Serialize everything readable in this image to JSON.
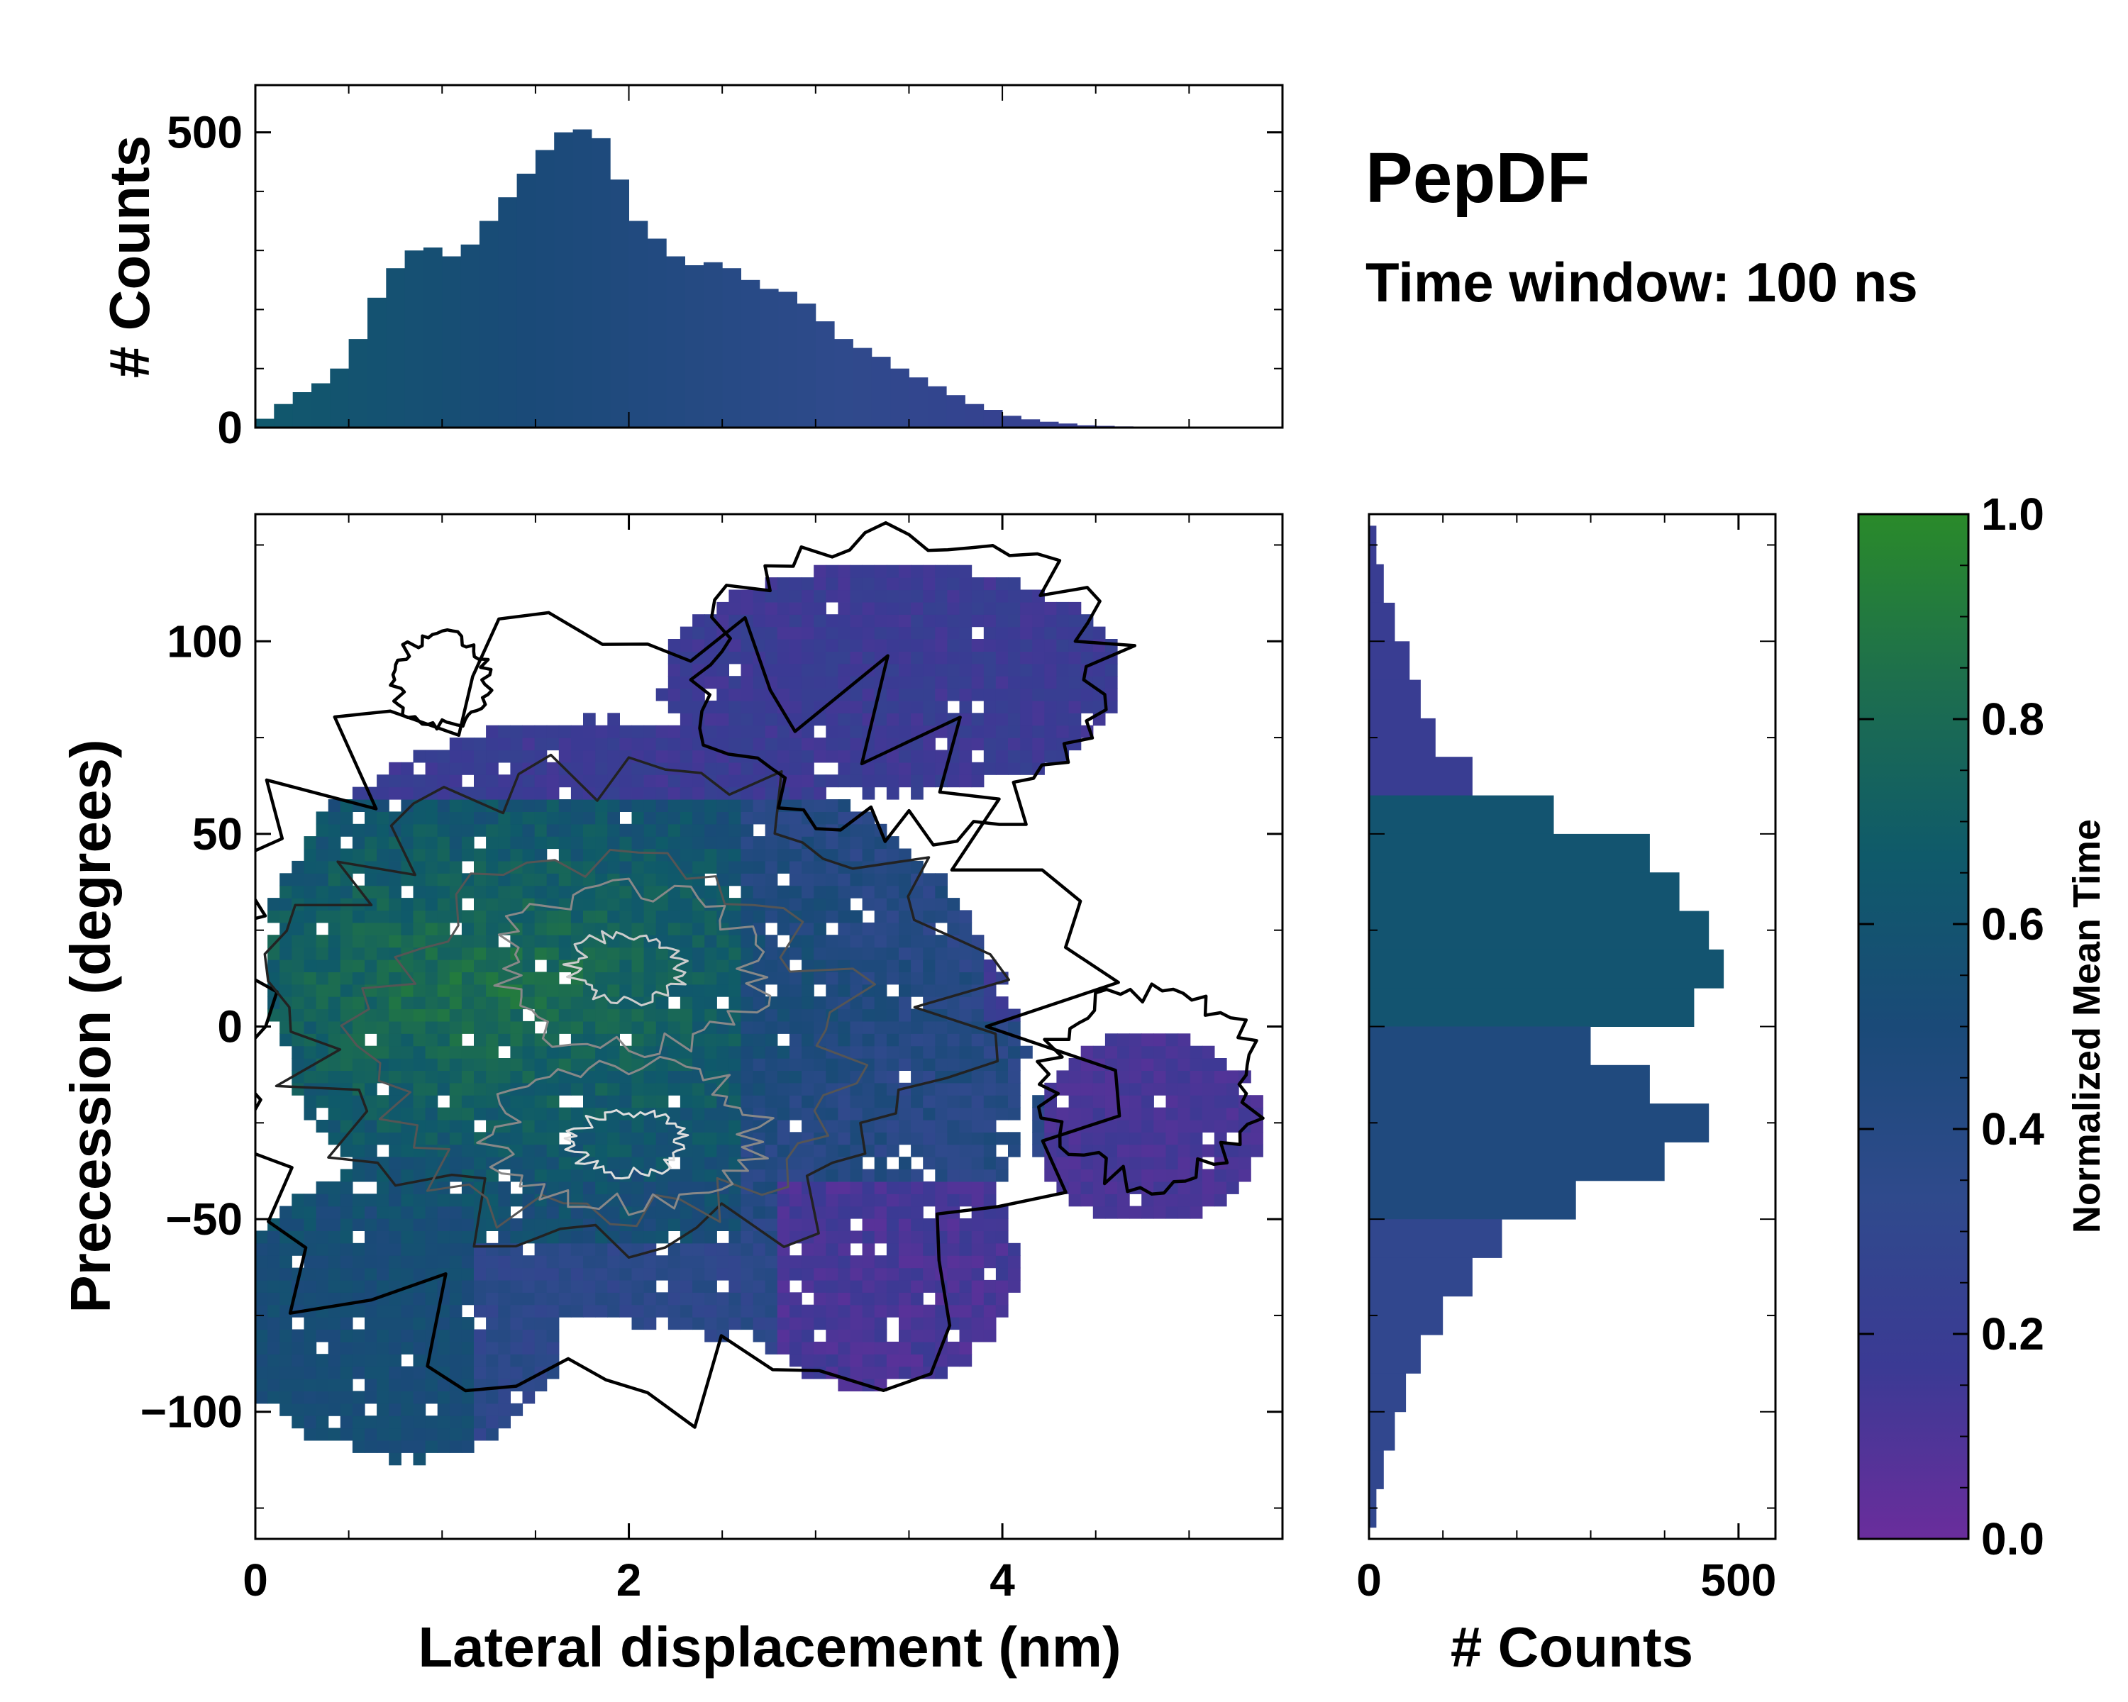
{
  "annotation": {
    "title": "PepDF",
    "subtitle": "Time window: 100 ns"
  },
  "colormap": {
    "stops": [
      "#6a2d9c",
      "#3b3a94",
      "#2f4a8c",
      "#1a4a78",
      "#0f5a6a",
      "#1d6e4e",
      "#2a8a2a"
    ]
  },
  "chart_data": [
    {
      "id": "main",
      "type": "heatmap",
      "title": "",
      "xlabel": "Lateral displacement (nm)",
      "ylabel": "Precession (degrees)",
      "xlim": [
        0,
        5.5
      ],
      "ylim": [
        -133,
        133
      ],
      "xticks": [
        0,
        2,
        4
      ],
      "xtick_labels": [
        "0",
        "2",
        "4"
      ],
      "yticks": [
        -100,
        -50,
        0,
        50,
        100
      ],
      "ytick_labels": [
        "−100",
        "−50",
        "0",
        "50",
        "100"
      ],
      "description_colors": "cell color = normalized mean time; contour lines = density (black outer, gray/white inner)",
      "clusters": [
        {
          "label": "green region",
          "x": [
            0.2,
            3.9
          ],
          "y": [
            -40,
            55
          ],
          "mean_time": 0.75
        },
        {
          "label": "purple upper-right",
          "x": [
            2.3,
            4.8
          ],
          "y": [
            40,
            130
          ],
          "mean_time": 0.15
        },
        {
          "label": "purple right",
          "x": [
            4.3,
            5.4
          ],
          "y": [
            -45,
            10
          ],
          "mean_time": 0.1
        },
        {
          "label": "purple lower",
          "x": [
            2.8,
            4.2
          ],
          "y": [
            -100,
            -40
          ],
          "mean_time": 0.1
        },
        {
          "label": "blue lower-left",
          "x": [
            0.0,
            2.4
          ],
          "y": [
            -133,
            -55
          ],
          "mean_time": 0.35
        }
      ],
      "density_peaks": [
        {
          "x": 2.0,
          "y": 15
        },
        {
          "x": 2.0,
          "y": -30
        }
      ],
      "colorbar": {
        "label": "Normalized Mean Time",
        "range": [
          0.0,
          1.0
        ],
        "ticks": [
          0.0,
          0.2,
          0.4,
          0.6,
          0.8,
          1.0
        ],
        "tick_labels": [
          "0.0",
          "0.2",
          "0.4",
          "0.6",
          "0.8",
          "1.0"
        ]
      }
    },
    {
      "id": "top_hist",
      "type": "bar",
      "xlabel": "",
      "ylabel": "# Counts",
      "xlim": [
        0,
        5.5
      ],
      "ylim": [
        0,
        580
      ],
      "yticks": [
        0,
        500
      ],
      "ytick_labels": [
        "0",
        "500"
      ],
      "x": [
        0.05,
        0.15,
        0.25,
        0.35,
        0.45,
        0.55,
        0.65,
        0.75,
        0.85,
        0.95,
        1.05,
        1.15,
        1.25,
        1.35,
        1.45,
        1.55,
        1.65,
        1.75,
        1.85,
        1.95,
        2.05,
        2.15,
        2.25,
        2.35,
        2.45,
        2.55,
        2.65,
        2.75,
        2.85,
        2.95,
        3.05,
        3.15,
        3.25,
        3.35,
        3.45,
        3.55,
        3.65,
        3.75,
        3.85,
        3.95,
        4.05,
        4.15,
        4.25,
        4.35,
        4.45,
        4.55,
        4.65,
        4.75,
        4.85,
        4.95,
        5.05,
        5.15,
        5.25,
        5.35,
        5.45
      ],
      "values": [
        15,
        40,
        60,
        75,
        100,
        150,
        220,
        270,
        300,
        305,
        290,
        310,
        350,
        390,
        430,
        470,
        500,
        505,
        490,
        420,
        350,
        320,
        290,
        275,
        280,
        270,
        250,
        235,
        230,
        210,
        180,
        150,
        135,
        120,
        100,
        85,
        70,
        55,
        40,
        30,
        20,
        14,
        10,
        7,
        4,
        3,
        2,
        1,
        0,
        0,
        0,
        0,
        0,
        0,
        0
      ]
    },
    {
      "id": "right_hist",
      "type": "bar",
      "orientation": "horizontal",
      "xlabel": "# Counts",
      "ylabel": "",
      "xlim": [
        0,
        550
      ],
      "ylim": [
        -133,
        133
      ],
      "xticks": [
        0,
        500
      ],
      "xtick_labels": [
        "0",
        "500"
      ],
      "y": [
        125,
        115,
        105,
        95,
        85,
        75,
        65,
        55,
        45,
        35,
        25,
        15,
        5,
        -5,
        -15,
        -25,
        -35,
        -45,
        -55,
        -65,
        -75,
        -85,
        -95,
        -105,
        -115,
        -125
      ],
      "values": [
        10,
        20,
        35,
        55,
        70,
        90,
        140,
        250,
        380,
        420,
        460,
        480,
        440,
        300,
        380,
        460,
        400,
        280,
        180,
        140,
        100,
        70,
        50,
        35,
        20,
        10
      ]
    }
  ]
}
